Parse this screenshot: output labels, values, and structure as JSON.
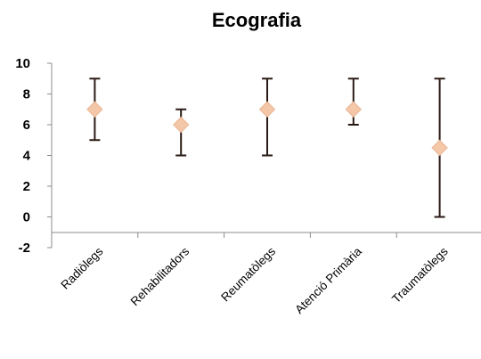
{
  "chart_data": {
    "type": "scatter",
    "title": "Ecografia",
    "xlabel": "",
    "ylabel": "",
    "categories": [
      "Radiòlegs",
      "Rehabilitadors",
      "Reumatòlegs",
      "Atenció Primària",
      "Traumatòlegs"
    ],
    "y_ticks": [
      "10",
      "8",
      "6",
      "4",
      "2",
      "0",
      "-2"
    ],
    "ylim": [
      -2,
      10
    ],
    "series": [
      {
        "values": [
          7,
          6,
          7,
          7,
          4.5
        ],
        "low": [
          5,
          4,
          4,
          6,
          0
        ],
        "high": [
          9,
          7,
          9,
          9,
          9
        ]
      }
    ],
    "grid": false,
    "legend": "none",
    "colors": {
      "marker": "#f4c7a8",
      "marker_edge": "#eab694",
      "error_bar": "#2a1a14",
      "axis": "#8c8c8c"
    }
  }
}
